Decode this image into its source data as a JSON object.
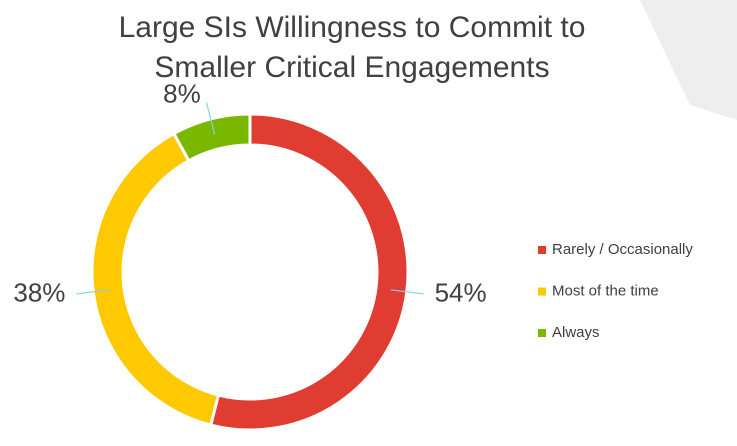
{
  "chart_data": {
    "type": "donut",
    "title": "Large SIs Willingness to Commit to Smaller Critical Engagements",
    "categories": [
      "Rarely / Occasionally",
      "Most of the time",
      "Always"
    ],
    "values": [
      54,
      38,
      8
    ],
    "value_labels": [
      "54%",
      "38%",
      "8%"
    ],
    "colors": [
      "#e03c31",
      "#ffc900",
      "#7ab800"
    ],
    "legend": "right"
  }
}
